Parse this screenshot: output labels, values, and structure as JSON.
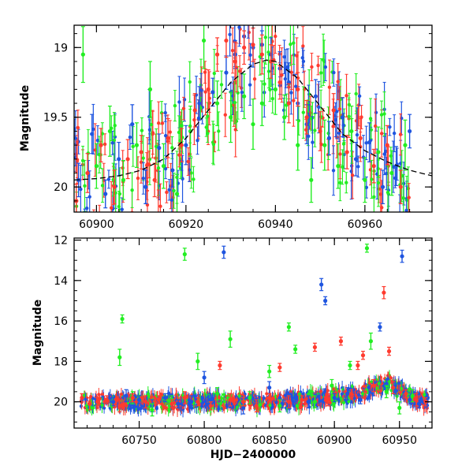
{
  "chart_data": [
    {
      "type": "scatter",
      "panel": "top",
      "title": "",
      "xlabel": "",
      "ylabel": "Magnitude",
      "xlim": [
        60895,
        60975
      ],
      "ylim": [
        20.18,
        18.84
      ],
      "y_inverted": true,
      "xticks": [
        60900,
        60920,
        60940,
        60960
      ],
      "yticks": [
        19,
        19.5,
        20
      ],
      "xtick_labels": [
        "60900",
        "60920",
        "60940",
        "60960"
      ],
      "ytick_labels": [
        "19",
        "19.5",
        "20"
      ],
      "colors": {
        "blue": "#1f55e0",
        "green": "#22ee22",
        "red": "#ff3b2f",
        "model": "#000000"
      },
      "model_curve": {
        "name": "fit",
        "x": [
          60895,
          60900,
          60905,
          60910,
          60915,
          60920,
          60925,
          60930,
          60935,
          60938,
          60940,
          60945,
          60950,
          60955,
          60960,
          60965,
          60970,
          60975
        ],
        "y": [
          19.95,
          19.94,
          19.92,
          19.88,
          19.8,
          19.65,
          19.45,
          19.25,
          19.12,
          19.09,
          19.1,
          19.22,
          19.42,
          19.62,
          19.74,
          19.82,
          19.88,
          19.92
        ]
      },
      "series": [
        {
          "name": "blue",
          "color": "#1f55e0",
          "points": [
            [
              60896,
              19.95,
              0.12
            ],
            [
              60899,
              19.62,
              0.14
            ],
            [
              60902,
              20.05,
              0.1
            ],
            [
              60905,
              19.8,
              0.12
            ],
            [
              60908,
              19.55,
              0.14
            ],
            [
              60911,
              20.0,
              0.12
            ],
            [
              60914,
              19.72,
              0.1
            ],
            [
              60917,
              19.88,
              0.12
            ],
            [
              60920,
              19.7,
              0.14
            ],
            [
              60923,
              19.4,
              0.12
            ],
            [
              60926,
              19.32,
              0.1
            ],
            [
              60929,
              19.18,
              0.12
            ],
            [
              60931,
              19.05,
              0.1
            ],
            [
              60933,
              18.92,
              0.12
            ],
            [
              60935,
              19.0,
              0.14
            ],
            [
              60937,
              18.98,
              0.1
            ],
            [
              60939,
              19.05,
              0.12
            ],
            [
              60941,
              19.15,
              0.12
            ],
            [
              60943,
              19.25,
              0.14
            ],
            [
              60945,
              19.4,
              0.12
            ],
            [
              60947,
              19.55,
              0.14
            ],
            [
              60949,
              19.35,
              0.12
            ],
            [
              60952,
              19.65,
              0.12
            ],
            [
              60955,
              19.5,
              0.14
            ],
            [
              60958,
              19.8,
              0.12
            ],
            [
              60961,
              19.68,
              0.14
            ],
            [
              60964,
              20.0,
              0.12
            ],
            [
              60967,
              19.85,
              0.14
            ],
            [
              60970,
              19.6,
              0.12
            ]
          ]
        },
        {
          "name": "green",
          "color": "#22ee22",
          "points": [
            [
              60897,
              19.05,
              0.2
            ],
            [
              60900,
              19.85,
              0.16
            ],
            [
              60903,
              19.6,
              0.18
            ],
            [
              60906,
              19.95,
              0.14
            ],
            [
              60909,
              19.7,
              0.16
            ],
            [
              60912,
              19.3,
              0.2
            ],
            [
              60915,
              19.85,
              0.16
            ],
            [
              60918,
              20.05,
              0.14
            ],
            [
              60921,
              19.6,
              0.18
            ],
            [
              60924,
              18.95,
              0.2
            ],
            [
              60927,
              19.4,
              0.16
            ],
            [
              60930,
              19.5,
              0.18
            ],
            [
              60933,
              19.35,
              0.16
            ],
            [
              60935,
              19.55,
              0.18
            ],
            [
              60937,
              19.4,
              0.16
            ],
            [
              60940,
              19.3,
              0.18
            ],
            [
              60942,
              19.5,
              0.16
            ],
            [
              60945,
              19.7,
              0.18
            ],
            [
              60948,
              19.95,
              0.16
            ],
            [
              60951,
              19.7,
              0.18
            ],
            [
              60954,
              19.85,
              0.16
            ],
            [
              60957,
              19.6,
              0.18
            ],
            [
              60960,
              19.95,
              0.16
            ],
            [
              60963,
              19.75,
              0.18
            ],
            [
              60966,
              19.9,
              0.16
            ],
            [
              60969,
              19.7,
              0.18
            ]
          ]
        },
        {
          "name": "red",
          "color": "#ff3b2f",
          "points": [
            [
              60895.5,
              20.1,
              0.12
            ],
            [
              60898,
              19.9,
              0.14
            ],
            [
              60901,
              19.7,
              0.12
            ],
            [
              60904,
              20.0,
              0.12
            ],
            [
              60907,
              19.8,
              0.14
            ],
            [
              60910,
              19.75,
              0.12
            ],
            [
              60913,
              19.95,
              0.12
            ],
            [
              60916,
              19.65,
              0.14
            ],
            [
              60919,
              19.7,
              0.12
            ],
            [
              60922,
              19.45,
              0.12
            ],
            [
              60925,
              19.3,
              0.14
            ],
            [
              60927,
              19.05,
              0.12
            ],
            [
              60929,
              18.95,
              0.12
            ],
            [
              60931,
              19.1,
              0.14
            ],
            [
              60933,
              19.0,
              0.12
            ],
            [
              60935,
              18.98,
              0.12
            ],
            [
              60937,
              19.05,
              0.14
            ],
            [
              60939,
              19.1,
              0.12
            ],
            [
              60941,
              19.25,
              0.12
            ],
            [
              60943,
              19.4,
              0.14
            ],
            [
              60945,
              19.3,
              0.12
            ],
            [
              60947,
              19.5,
              0.12
            ],
            [
              60950,
              19.6,
              0.14
            ],
            [
              60953,
              19.45,
              0.12
            ],
            [
              60956,
              19.75,
              0.12
            ],
            [
              60959,
              19.65,
              0.14
            ],
            [
              60962,
              19.85,
              0.12
            ],
            [
              60965,
              19.7,
              0.14
            ],
            [
              60968,
              20.0,
              0.12
            ]
          ]
        }
      ]
    },
    {
      "type": "scatter",
      "panel": "bottom",
      "title": "",
      "xlabel": "HJD−2400000",
      "ylabel": "Magnitude",
      "xlim": [
        60700,
        60975
      ],
      "ylim": [
        21.3,
        11.9
      ],
      "y_inverted": true,
      "xticks": [
        60750,
        60800,
        60850,
        60900,
        60950
      ],
      "yticks": [
        12,
        14,
        16,
        18,
        20
      ],
      "xtick_labels": [
        "60750",
        "60800",
        "60850",
        "60900",
        "60950"
      ],
      "ytick_labels": [
        "12",
        "14",
        "16",
        "18",
        "20"
      ],
      "colors": {
        "blue": "#1f55e0",
        "green": "#22ee22",
        "red": "#ff3b2f"
      },
      "series": [
        {
          "name": "blue",
          "color": "#1f55e0",
          "points": [
            [
              60730,
              20.0,
              0.2
            ],
            [
              60740,
              19.7,
              0.3
            ],
            [
              60750,
              19.9,
              0.2
            ],
            [
              60760,
              20.2,
              0.3
            ],
            [
              60770,
              19.8,
              0.2
            ],
            [
              60780,
              20.1,
              0.2
            ],
            [
              60790,
              20.0,
              0.3
            ],
            [
              60800,
              18.8,
              0.3
            ],
            [
              60805,
              19.9,
              0.2
            ],
            [
              60815,
              12.6,
              0.3
            ],
            [
              60820,
              20.1,
              0.2
            ],
            [
              60830,
              20.3,
              0.3
            ],
            [
              60840,
              19.9,
              0.2
            ],
            [
              60850,
              19.3,
              0.3
            ],
            [
              60860,
              20.1,
              0.2
            ],
            [
              60870,
              19.8,
              0.2
            ],
            [
              60880,
              20.0,
              0.3
            ],
            [
              60890,
              14.2,
              0.3
            ],
            [
              60893,
              15.0,
              0.2
            ],
            [
              60900,
              19.8,
              0.2
            ],
            [
              60910,
              19.6,
              0.3
            ],
            [
              60920,
              19.9,
              0.2
            ],
            [
              60930,
              19.4,
              0.3
            ],
            [
              60935,
              16.3,
              0.2
            ],
            [
              60940,
              19.1,
              0.2
            ],
            [
              60945,
              19.3,
              0.3
            ],
            [
              60952,
              12.8,
              0.3
            ],
            [
              60958,
              19.9,
              0.2
            ],
            [
              60965,
              20.1,
              0.2
            ]
          ]
        },
        {
          "name": "green",
          "color": "#22ee22",
          "points": [
            [
              60735,
              17.8,
              0.4
            ],
            [
              60737,
              15.9,
              0.2
            ],
            [
              60745,
              19.8,
              0.3
            ],
            [
              60760,
              20.4,
              0.3
            ],
            [
              60775,
              19.9,
              0.2
            ],
            [
              60785,
              12.7,
              0.3
            ],
            [
              60795,
              18.0,
              0.4
            ],
            [
              60810,
              19.6,
              0.3
            ],
            [
              60820,
              16.9,
              0.4
            ],
            [
              60835,
              19.8,
              0.3
            ],
            [
              60850,
              18.5,
              0.3
            ],
            [
              60858,
              20.2,
              0.3
            ],
            [
              60865,
              16.3,
              0.2
            ],
            [
              60870,
              17.4,
              0.2
            ],
            [
              60885,
              20.0,
              0.3
            ],
            [
              60898,
              19.2,
              0.3
            ],
            [
              60912,
              18.2,
              0.2
            ],
            [
              60925,
              12.4,
              0.2
            ],
            [
              60928,
              17.0,
              0.4
            ],
            [
              60940,
              19.5,
              0.3
            ],
            [
              60950,
              20.3,
              0.3
            ],
            [
              60960,
              19.7,
              0.3
            ]
          ]
        },
        {
          "name": "red",
          "color": "#ff3b2f",
          "points": [
            [
              60706,
              19.8,
              0.2
            ],
            [
              60712,
              20.1,
              0.3
            ],
            [
              60718,
              20.0,
              0.2
            ],
            [
              60725,
              19.9,
              0.2
            ],
            [
              60735,
              20.2,
              0.3
            ],
            [
              60745,
              19.8,
              0.2
            ],
            [
              60755,
              20.0,
              0.3
            ],
            [
              60765,
              19.9,
              0.2
            ],
            [
              60775,
              20.1,
              0.2
            ],
            [
              60785,
              19.8,
              0.3
            ],
            [
              60795,
              20.0,
              0.2
            ],
            [
              60805,
              20.2,
              0.2
            ],
            [
              60812,
              18.2,
              0.2
            ],
            [
              60820,
              19.9,
              0.3
            ],
            [
              60830,
              20.0,
              0.2
            ],
            [
              60840,
              20.2,
              0.3
            ],
            [
              60850,
              19.8,
              0.2
            ],
            [
              60858,
              18.3,
              0.2
            ],
            [
              60865,
              20.0,
              0.3
            ],
            [
              60875,
              19.9,
              0.2
            ],
            [
              60885,
              17.3,
              0.2
            ],
            [
              60895,
              19.9,
              0.3
            ],
            [
              60905,
              17.0,
              0.2
            ],
            [
              60913,
              19.6,
              0.2
            ],
            [
              60918,
              18.2,
              0.2
            ],
            [
              60922,
              17.7,
              0.2
            ],
            [
              60930,
              19.2,
              0.3
            ],
            [
              60938,
              14.6,
              0.3
            ],
            [
              60942,
              17.5,
              0.2
            ],
            [
              60945,
              19.3,
              0.3
            ],
            [
              60955,
              19.6,
              0.2
            ],
            [
              60963,
              19.9,
              0.3
            ],
            [
              60970,
              20.0,
              0.2
            ]
          ]
        }
      ],
      "baseline_band": {
        "x_start": 60705,
        "x_end": 60972,
        "center": [
          [
            60705,
            20.0
          ],
          [
            60760,
            20.0
          ],
          [
            60800,
            20.0
          ],
          [
            60850,
            20.0
          ],
          [
            60880,
            19.9
          ],
          [
            60900,
            19.75
          ],
          [
            60920,
            19.6
          ],
          [
            60935,
            19.2
          ],
          [
            60940,
            19.05
          ],
          [
            60950,
            19.4
          ],
          [
            60960,
            19.85
          ],
          [
            60972,
            20.0
          ]
        ],
        "spread": 0.45
      }
    }
  ]
}
